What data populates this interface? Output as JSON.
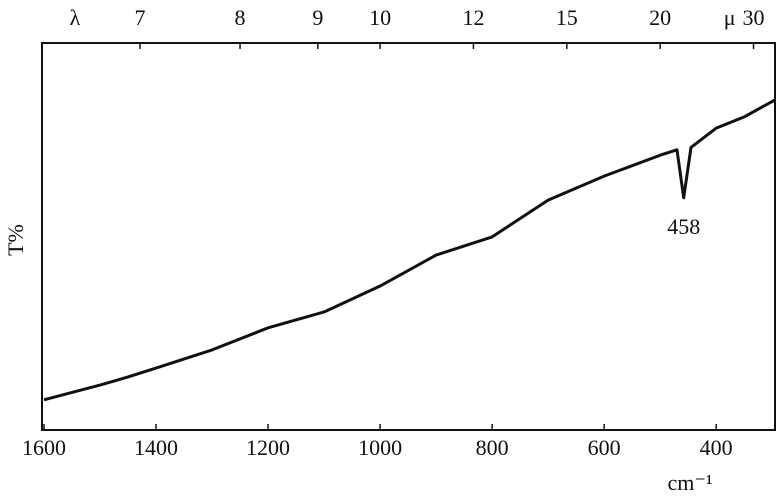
{
  "chart_data": {
    "type": "line",
    "x_label": "cm⁻¹",
    "y_label": "T%",
    "xlim": [
      1600,
      295
    ],
    "ylim": [
      0,
      100
    ],
    "xticks": [
      1600,
      1400,
      1200,
      1000,
      800,
      600,
      400
    ],
    "top_axis": {
      "symbol": "λ",
      "unit": "μ",
      "ticks": [
        7,
        8,
        9,
        10,
        12,
        15,
        20,
        30
      ]
    },
    "x": [
      1600,
      1500,
      1450,
      1400,
      1300,
      1200,
      1100,
      1000,
      900,
      800,
      700,
      600,
      500,
      470,
      458,
      445,
      400,
      350,
      295
    ],
    "series": [
      {
        "color": "#111111",
        "values": [
          7.8,
          11.6,
          13.7,
          16,
          20.7,
          26.4,
          30.5,
          37.2,
          45.2,
          49.9,
          59.4,
          65.6,
          71,
          72.4,
          60,
          73,
          78,
          80.9,
          85.3
        ]
      }
    ],
    "annotations": [
      {
        "text": "458",
        "x": 458,
        "y": 52
      }
    ]
  }
}
